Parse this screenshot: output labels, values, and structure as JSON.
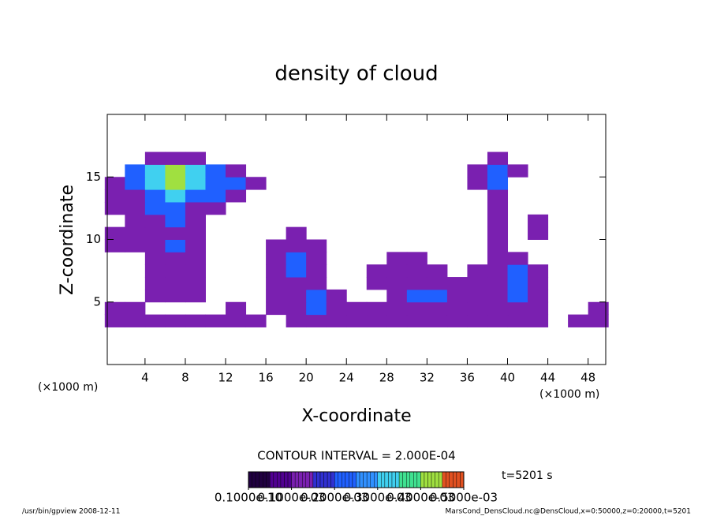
{
  "chart_data": {
    "type": "contour",
    "title": "density of cloud",
    "xlabel": "X-coordinate",
    "ylabel": "Z-coordinate",
    "x_units": "(×1000 m)",
    "xlim": [
      0.25,
      49.75
    ],
    "ylim": [
      0,
      20
    ],
    "xticks": [
      4,
      8,
      12,
      16,
      20,
      24,
      28,
      32,
      36,
      40,
      44,
      48
    ],
    "yticks": [
      5,
      10,
      15
    ],
    "x": [
      1,
      3,
      5,
      7,
      9,
      11,
      13,
      15,
      17,
      19,
      21,
      23,
      25,
      27,
      29,
      31,
      33,
      35,
      37,
      39,
      41,
      43,
      45,
      47,
      49
    ],
    "y": [
      3.5,
      4.5,
      5.5,
      6.5,
      7.5,
      8.5,
      9.5,
      10.5,
      11.5,
      12.5,
      13.5,
      14.5,
      15.5,
      16.5
    ],
    "z": [
      [
        0.0001,
        0.0001,
        0.0001,
        0.0001,
        0.0001,
        0.0001,
        0.0001,
        0.0001,
        0,
        0.0001,
        0.0001,
        0.0001,
        0.0001,
        0.0001,
        0.0001,
        0.0001,
        0.0001,
        0.0001,
        0.0001,
        0.0001,
        0.0001,
        0.0001,
        0,
        0.0001,
        0.0001
      ],
      [
        0.0001,
        0.0001,
        0,
        0,
        0,
        0,
        0.0001,
        0,
        0.0001,
        0.0001,
        0.0002,
        0.0001,
        0.0001,
        0.0001,
        0.0001,
        0.0001,
        0.0001,
        0.0001,
        0.0001,
        0.0001,
        0.0001,
        0.0001,
        0,
        0,
        0.0001
      ],
      [
        0,
        0,
        0.0001,
        0.0001,
        0.0001,
        0,
        0,
        0,
        0.0001,
        0.0001,
        0.0002,
        0.0001,
        0,
        0,
        0.0001,
        0.0002,
        0.0002,
        0.0001,
        0.0001,
        0.0001,
        0.0002,
        0.0001,
        0,
        0,
        0
      ],
      [
        0,
        0,
        0.0001,
        0.0001,
        0.0001,
        0,
        0,
        0,
        0.0001,
        0.0001,
        0.0001,
        0,
        0,
        0.0001,
        0.0001,
        0.0001,
        0.0001,
        0.0001,
        0.0001,
        0.0001,
        0.0002,
        0.0001,
        0,
        0,
        0
      ],
      [
        0,
        0,
        0.0001,
        0.0001,
        0.0001,
        0,
        0,
        0,
        0.0001,
        0.0002,
        0.0001,
        0,
        0,
        0.0001,
        0.0001,
        0.0001,
        0.0001,
        0,
        0.0001,
        0.0001,
        0.0002,
        0.0001,
        0,
        0,
        0
      ],
      [
        0,
        0,
        0.0001,
        0.0001,
        0.0001,
        0,
        0,
        0,
        0.0001,
        0.0002,
        0.0001,
        0,
        0,
        0,
        0.0001,
        0.0001,
        0,
        0,
        0,
        0.0001,
        0.0001,
        0,
        0,
        0,
        0
      ],
      [
        0.0001,
        0.0001,
        0.0001,
        0.0002,
        0.0001,
        0,
        0,
        0,
        0.0001,
        0.0001,
        0.0001,
        0,
        0,
        0,
        0,
        0,
        0,
        0,
        0,
        0.0001,
        0,
        0,
        0,
        0,
        0
      ],
      [
        0.0001,
        0.0001,
        0.0001,
        0.0001,
        0.0001,
        0,
        0,
        0,
        0,
        0.0001,
        0,
        0,
        0,
        0,
        0,
        0,
        0,
        0,
        0,
        0.0001,
        0,
        0.0001,
        0,
        0,
        0
      ],
      [
        0,
        0.0001,
        0.0001,
        0.0002,
        0.0001,
        0,
        0,
        0,
        0,
        0,
        0,
        0,
        0,
        0,
        0,
        0,
        0,
        0,
        0,
        0.0001,
        0,
        0.0001,
        0,
        0,
        0
      ],
      [
        0.0001,
        0.0001,
        0.0002,
        0.0002,
        0.0001,
        0.0001,
        0,
        0,
        0,
        0,
        0,
        0,
        0,
        0,
        0,
        0,
        0,
        0,
        0,
        0.0001,
        0,
        0,
        0,
        0,
        0
      ],
      [
        0.0001,
        0.0001,
        0.0002,
        0.0003,
        0.0002,
        0.0002,
        0.0001,
        0,
        0,
        0,
        0,
        0,
        0,
        0,
        0,
        0,
        0,
        0,
        0,
        0.0001,
        0,
        0,
        0,
        0,
        0
      ],
      [
        0.0001,
        0.0002,
        0.0003,
        0.0004,
        0.0003,
        0.0002,
        0.0002,
        0.0001,
        0,
        0,
        0,
        0,
        0,
        0,
        0,
        0,
        0,
        0,
        0.0001,
        0.0002,
        0,
        0,
        0,
        0,
        0
      ],
      [
        0,
        0.0002,
        0.0003,
        0.0004,
        0.0003,
        0.0002,
        0.0001,
        0,
        0,
        0,
        0,
        0,
        0,
        0,
        0,
        0,
        0,
        0,
        0.0001,
        0.0002,
        0.0001,
        0,
        0,
        0,
        0
      ],
      [
        0,
        0,
        0.0001,
        0.0001,
        0.0001,
        0,
        0,
        0,
        0,
        0,
        0,
        0,
        0,
        0,
        0,
        0,
        0,
        0,
        0,
        0.0001,
        0,
        0,
        0,
        0,
        0
      ]
    ],
    "clim": [
      0,
      0.0005
    ],
    "colormap": [
      "#200040",
      "#500090",
      "#7a20b0",
      "#3030d0",
      "#2060ff",
      "#3090ff",
      "#40d0f0",
      "#40e090",
      "#a0e040",
      "#e05020"
    ],
    "colorbar_ticks": [
      {
        "value": 1e-11,
        "label": "0.1000e-10"
      },
      {
        "value": 0.0001,
        "label": "0.1000e-03"
      },
      {
        "value": 0.0002,
        "label": "0.2000e-03"
      },
      {
        "value": 0.0003,
        "label": "0.3000e-03"
      },
      {
        "value": 0.0004,
        "label": "0.4000e-03"
      },
      {
        "value": 0.0005,
        "label": "0.5000e-03"
      }
    ],
    "contour_interval_text": "CONTOUR INTERVAL = 2.000E-04",
    "time_text": "t=5201 s",
    "footer_left": "/usr/bin/gpview  2008-12-11",
    "footer_right": "MarsCond_DensCloud.nc@DensCloud,x=0:50000,z=0:20000,t=5201"
  }
}
